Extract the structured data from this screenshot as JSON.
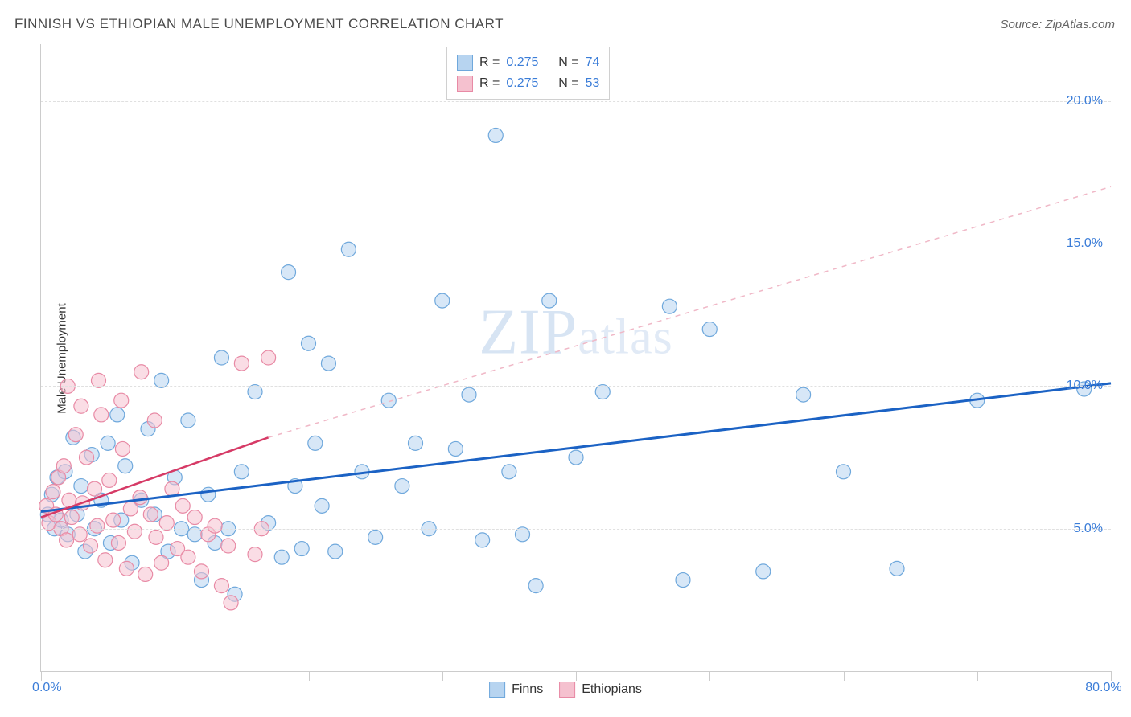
{
  "title": "FINNISH VS ETHIOPIAN MALE UNEMPLOYMENT CORRELATION CHART",
  "source": "Source: ZipAtlas.com",
  "ylabel": "Male Unemployment",
  "watermark": {
    "zip": "ZIP",
    "atlas": "atlas"
  },
  "chart": {
    "type": "scatter",
    "xlim": [
      0,
      80
    ],
    "ylim": [
      0,
      22
    ],
    "x_ticks": [
      0,
      10,
      20,
      30,
      40,
      50,
      60,
      70,
      80
    ],
    "x_tick_labels": {
      "first": "0.0%",
      "last": "80.0%"
    },
    "y_ticks": [
      5,
      10,
      15,
      20
    ],
    "y_tick_labels": [
      "5.0%",
      "10.0%",
      "15.0%",
      "20.0%"
    ],
    "grid_color": "#e0e0e0",
    "axis_color": "#cccccc",
    "background_color": "#ffffff",
    "tick_label_color": "#3b7dd8",
    "text_color": "#333333",
    "marker_radius": 9,
    "series": [
      {
        "name": "Finns",
        "color_fill": "#b7d4f0",
        "color_stroke": "#6fa8dc",
        "fill_opacity": 0.55,
        "stroke_width": 1.2,
        "trend": {
          "type": "solid",
          "color": "#1b62c4",
          "width": 3,
          "x1": 0,
          "y1": 5.6,
          "x2": 80,
          "y2": 10.1
        },
        "points": [
          [
            0.5,
            5.5
          ],
          [
            0.8,
            6.2
          ],
          [
            1,
            5.0
          ],
          [
            1.2,
            6.8
          ],
          [
            1.5,
            5.3
          ],
          [
            1.8,
            7.0
          ],
          [
            2,
            4.8
          ],
          [
            2.4,
            8.2
          ],
          [
            2.7,
            5.5
          ],
          [
            3,
            6.5
          ],
          [
            3.3,
            4.2
          ],
          [
            3.8,
            7.6
          ],
          [
            4,
            5.0
          ],
          [
            4.5,
            6.0
          ],
          [
            5,
            8.0
          ],
          [
            5.2,
            4.5
          ],
          [
            5.7,
            9.0
          ],
          [
            6,
            5.3
          ],
          [
            6.3,
            7.2
          ],
          [
            6.8,
            3.8
          ],
          [
            7.5,
            6.0
          ],
          [
            8,
            8.5
          ],
          [
            8.5,
            5.5
          ],
          [
            9,
            10.2
          ],
          [
            9.5,
            4.2
          ],
          [
            10,
            6.8
          ],
          [
            10.5,
            5.0
          ],
          [
            11,
            8.8
          ],
          [
            11.5,
            4.8
          ],
          [
            12,
            3.2
          ],
          [
            12.5,
            6.2
          ],
          [
            13,
            4.5
          ],
          [
            13.5,
            11.0
          ],
          [
            14,
            5.0
          ],
          [
            14.5,
            2.7
          ],
          [
            15,
            7.0
          ],
          [
            16,
            9.8
          ],
          [
            17,
            5.2
          ],
          [
            18,
            4.0
          ],
          [
            18.5,
            14.0
          ],
          [
            19,
            6.5
          ],
          [
            19.5,
            4.3
          ],
          [
            20,
            11.5
          ],
          [
            20.5,
            8.0
          ],
          [
            21,
            5.8
          ],
          [
            21.5,
            10.8
          ],
          [
            22,
            4.2
          ],
          [
            23,
            14.8
          ],
          [
            24,
            7.0
          ],
          [
            25,
            4.7
          ],
          [
            26,
            9.5
          ],
          [
            27,
            6.5
          ],
          [
            28,
            8.0
          ],
          [
            29,
            5.0
          ],
          [
            30,
            13.0
          ],
          [
            31,
            7.8
          ],
          [
            32,
            9.7
          ],
          [
            33,
            4.6
          ],
          [
            34,
            18.8
          ],
          [
            35,
            7.0
          ],
          [
            36,
            4.8
          ],
          [
            37,
            3.0
          ],
          [
            38,
            13.0
          ],
          [
            40,
            7.5
          ],
          [
            42,
            9.8
          ],
          [
            47,
            12.8
          ],
          [
            48,
            3.2
          ],
          [
            50,
            12.0
          ],
          [
            54,
            3.5
          ],
          [
            57,
            9.7
          ],
          [
            60,
            7.0
          ],
          [
            64,
            3.6
          ],
          [
            70,
            9.5
          ],
          [
            78,
            9.9
          ]
        ]
      },
      {
        "name": "Ethiopians",
        "color_fill": "#f5c1cf",
        "color_stroke": "#e88aa5",
        "fill_opacity": 0.55,
        "stroke_width": 1.2,
        "trend": {
          "type": "solid_then_dash",
          "color_solid": "#d63a66",
          "color_dash": "#f0b8c7",
          "width_solid": 2.5,
          "width_dash": 1.5,
          "x1": 0,
          "y1": 5.4,
          "x_split": 17,
          "y_split": 8.2,
          "x2": 80,
          "y2": 17.0
        },
        "points": [
          [
            0.4,
            5.8
          ],
          [
            0.6,
            5.2
          ],
          [
            0.9,
            6.3
          ],
          [
            1.1,
            5.5
          ],
          [
            1.3,
            6.8
          ],
          [
            1.5,
            5.0
          ],
          [
            1.7,
            7.2
          ],
          [
            1.9,
            4.6
          ],
          [
            2.1,
            6.0
          ],
          [
            2.3,
            5.4
          ],
          [
            2.6,
            8.3
          ],
          [
            2.9,
            4.8
          ],
          [
            3.1,
            5.9
          ],
          [
            3.4,
            7.5
          ],
          [
            3.7,
            4.4
          ],
          [
            4.0,
            6.4
          ],
          [
            4.2,
            5.1
          ],
          [
            4.5,
            9.0
          ],
          [
            4.8,
            3.9
          ],
          [
            5.1,
            6.7
          ],
          [
            5.4,
            5.3
          ],
          [
            5.8,
            4.5
          ],
          [
            6.1,
            7.8
          ],
          [
            6.4,
            3.6
          ],
          [
            6.7,
            5.7
          ],
          [
            3.0,
            9.3
          ],
          [
            2.0,
            10.0
          ],
          [
            7.0,
            4.9
          ],
          [
            7.4,
            6.1
          ],
          [
            7.8,
            3.4
          ],
          [
            8.2,
            5.5
          ],
          [
            8.6,
            4.7
          ],
          [
            4.3,
            10.2
          ],
          [
            9.0,
            3.8
          ],
          [
            9.4,
            5.2
          ],
          [
            9.8,
            6.4
          ],
          [
            10.2,
            4.3
          ],
          [
            10.6,
            5.8
          ],
          [
            6.0,
            9.5
          ],
          [
            11.0,
            4.0
          ],
          [
            11.5,
            5.4
          ],
          [
            12.0,
            3.5
          ],
          [
            12.5,
            4.8
          ],
          [
            7.5,
            10.5
          ],
          [
            13.0,
            5.1
          ],
          [
            13.5,
            3.0
          ],
          [
            14.0,
            4.4
          ],
          [
            14.2,
            2.4
          ],
          [
            15.0,
            10.8
          ],
          [
            8.5,
            8.8
          ],
          [
            16.0,
            4.1
          ],
          [
            16.5,
            5.0
          ],
          [
            17.0,
            11.0
          ]
        ]
      }
    ],
    "stats_box": {
      "rows": [
        {
          "swatch_fill": "#b7d4f0",
          "swatch_stroke": "#6fa8dc",
          "r_label": "R =",
          "r_val": "0.275",
          "n_label": "N =",
          "n_val": "74"
        },
        {
          "swatch_fill": "#f5c1cf",
          "swatch_stroke": "#e88aa5",
          "r_label": "R =",
          "r_val": "0.275",
          "n_label": "N =",
          "n_val": "53"
        }
      ]
    },
    "legend": [
      {
        "swatch_fill": "#b7d4f0",
        "swatch_stroke": "#6fa8dc",
        "label": "Finns"
      },
      {
        "swatch_fill": "#f5c1cf",
        "swatch_stroke": "#e88aa5",
        "label": "Ethiopians"
      }
    ]
  }
}
